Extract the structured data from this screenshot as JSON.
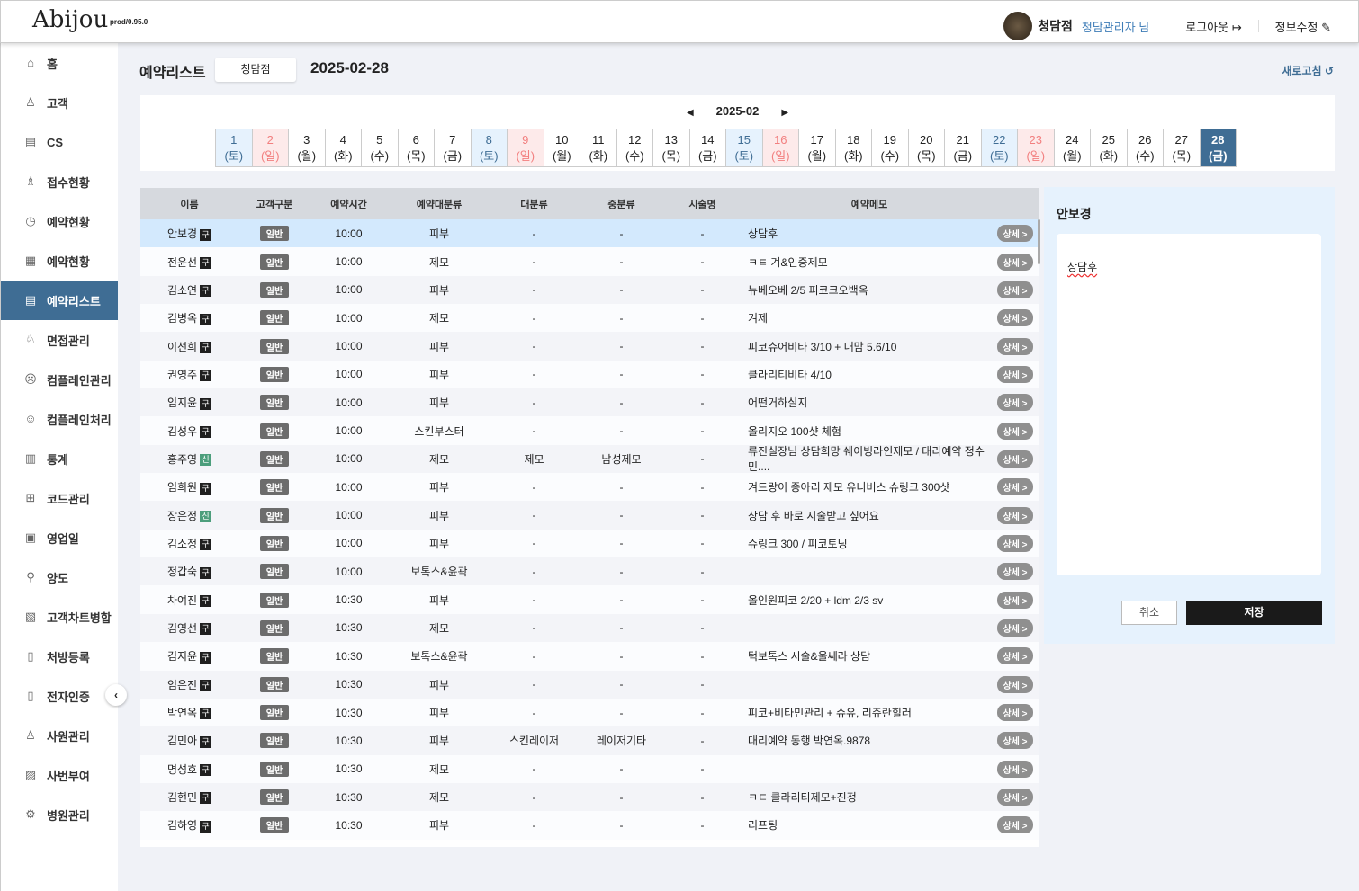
{
  "header": {
    "logo": "Abijou",
    "version": "prod/0.95.0",
    "branch": "청담점",
    "user": "청담관리자 님",
    "logout": "로그아웃",
    "logout_icon": "↦",
    "edit": "정보수정",
    "edit_icon": "✎"
  },
  "sidebar": {
    "items": [
      {
        "label": "홈",
        "icon": "⌂"
      },
      {
        "label": "고객",
        "icon": "♙"
      },
      {
        "label": "CS",
        "icon": "▤"
      },
      {
        "label": "접수현황",
        "icon": "♗"
      },
      {
        "label": "예약현황",
        "icon": "◷"
      },
      {
        "label": "예약현황",
        "icon": "▦"
      },
      {
        "label": "예약리스트",
        "icon": "▤",
        "active": true
      },
      {
        "label": "면접관리",
        "icon": "♘"
      },
      {
        "label": "컴플레인관리",
        "icon": "☹"
      },
      {
        "label": "컴플레인처리",
        "icon": "☺"
      },
      {
        "label": "통계",
        "icon": "▥"
      },
      {
        "label": "코드관리",
        "icon": "⊞"
      },
      {
        "label": "영업일",
        "icon": "▣"
      },
      {
        "label": "양도",
        "icon": "⚲"
      },
      {
        "label": "고객차트병합",
        "icon": "▧"
      },
      {
        "label": "처방등록",
        "icon": "▯"
      },
      {
        "label": "전자인증",
        "icon": "▯"
      },
      {
        "label": "사원관리",
        "icon": "♙"
      },
      {
        "label": "사번부여",
        "icon": "▨"
      },
      {
        "label": "병원관리",
        "icon": "⚙"
      }
    ],
    "collapse": "‹"
  },
  "page": {
    "title": "예약리스트",
    "branch": "청담점",
    "date": "2025-02-28",
    "refresh": "새로고침 ↺"
  },
  "calendar": {
    "month": "2025-02",
    "prev": "◀",
    "next": "▶",
    "weekdays": [
      "토",
      "일",
      "월",
      "화",
      "수",
      "목",
      "금"
    ],
    "selected": 28,
    "days": 28
  },
  "table": {
    "headers": [
      "이름",
      "고객구분",
      "예약시간",
      "예약대분류",
      "대분류",
      "중분류",
      "시술명",
      "예약메모",
      ""
    ],
    "type_label": "일반",
    "detail_label": "상세 >",
    "rows": [
      [
        "안보경",
        "구",
        "10:00",
        "피부",
        "-",
        "-",
        "-",
        "상담후"
      ],
      [
        "전윤선",
        "구",
        "10:00",
        "제모",
        "-",
        "-",
        "-",
        "ㅋㅌ 겨&인중제모"
      ],
      [
        "김소연",
        "구",
        "10:00",
        "피부",
        "-",
        "-",
        "-",
        "뉴베오베 2/5 피코크오백옥"
      ],
      [
        "김병옥",
        "구",
        "10:00",
        "제모",
        "-",
        "-",
        "-",
        "겨제"
      ],
      [
        "이선희",
        "구",
        "10:00",
        "피부",
        "-",
        "-",
        "-",
        "피코슈어비타 3/10 + 내맘 5.6/10"
      ],
      [
        "권영주",
        "구",
        "10:00",
        "피부",
        "-",
        "-",
        "-",
        "클라리티비타 4/10"
      ],
      [
        "임지윤",
        "구",
        "10:00",
        "피부",
        "-",
        "-",
        "-",
        "어떤거하실지"
      ],
      [
        "김성우",
        "구",
        "10:00",
        "스킨부스터",
        "-",
        "-",
        "-",
        "올리지오 100샷 체험"
      ],
      [
        "홍주영",
        "신",
        "10:00",
        "제모",
        "제모",
        "남성제모",
        "-",
        "류진실장님 상담희망 쉐이빙라인제모 / 대리예약 정수민...."
      ],
      [
        "임희원",
        "구",
        "10:00",
        "피부",
        "-",
        "-",
        "-",
        "겨드랑이 종아리 제모 유니버스 슈링크 300샷"
      ],
      [
        "장은정",
        "신",
        "10:00",
        "피부",
        "-",
        "-",
        "-",
        "상담 후 바로 시술받고 싶어요"
      ],
      [
        "김소정",
        "구",
        "10:00",
        "피부",
        "-",
        "-",
        "-",
        "슈링크 300 / 피코토닝"
      ],
      [
        "정갑숙",
        "구",
        "10:00",
        "보톡스&윤곽",
        "-",
        "-",
        "-",
        ""
      ],
      [
        "차여진",
        "구",
        "10:30",
        "피부",
        "-",
        "-",
        "-",
        "올인원피코 2/20 + ldm 2/3 sv"
      ],
      [
        "김영선",
        "구",
        "10:30",
        "제모",
        "-",
        "-",
        "-",
        ""
      ],
      [
        "김지윤",
        "구",
        "10:30",
        "보톡스&윤곽",
        "-",
        "-",
        "-",
        "턱보톡스 시술&울쎄라 상담"
      ],
      [
        "임은진",
        "구",
        "10:30",
        "피부",
        "-",
        "-",
        "-",
        ""
      ],
      [
        "박연옥",
        "구",
        "10:30",
        "피부",
        "-",
        "-",
        "-",
        "피코+비타민관리 + 슈유, 리쥬란힐러"
      ],
      [
        "김민아",
        "구",
        "10:30",
        "피부",
        "스킨레이저",
        "레이저기타",
        "-",
        "대리예약 동행 박연옥.9878"
      ],
      [
        "명성호",
        "구",
        "10:30",
        "제모",
        "-",
        "-",
        "-",
        ""
      ],
      [
        "김현민",
        "구",
        "10:30",
        "제모",
        "-",
        "-",
        "-",
        "ㅋㅌ 클라리티제모+진정"
      ],
      [
        "김하영",
        "구",
        "10:30",
        "피부",
        "-",
        "-",
        "-",
        "리프팅"
      ]
    ]
  },
  "panel": {
    "name": "안보경",
    "memo": "상담후",
    "cancel": "취소",
    "save": "저장"
  }
}
